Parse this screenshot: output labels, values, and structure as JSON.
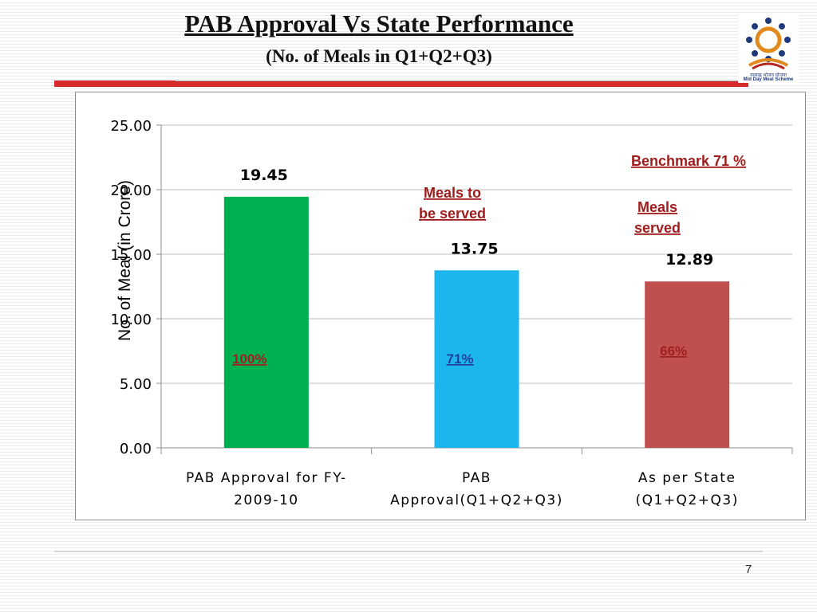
{
  "slide": {
    "title": "PAB Approval  Vs State Performance",
    "subtitle": "(No. of Meals in Q1+Q2+Q3)",
    "page_number": "7",
    "logo": {
      "icon": "mid-day-meal-scheme-logo",
      "caption_hindi": "मध्याह्न भोजन योजना",
      "caption": "Mid Day Meal Scheme"
    },
    "accent_color": "#d62b2b"
  },
  "chart_data": {
    "type": "bar",
    "categories": [
      [
        "PAB Approval for FY-",
        "2009-10"
      ],
      [
        "PAB",
        "Approval(Q1+Q2+Q3)"
      ],
      [
        "As per State",
        "(Q1+Q2+Q3)"
      ]
    ],
    "values": [
      19.45,
      13.75,
      12.89
    ],
    "value_labels": [
      "19.45",
      "13.75",
      "12.89"
    ],
    "bar_colors": [
      "#00b050",
      "#1cb5ee",
      "#c0504d"
    ],
    "percent_labels": [
      {
        "text": "100%",
        "color": "#a02020"
      },
      {
        "text": "71%",
        "color": "#1f3f9f"
      },
      {
        "text": "66%",
        "color": "#a02020"
      }
    ],
    "annotations": [
      {
        "text": "Benchmark  71 %",
        "color": "#a01c1c"
      },
      {
        "text": "Meals to be served",
        "color": "#a01c1c"
      },
      {
        "text": "Meals served",
        "color": "#a01c1c"
      }
    ],
    "ylabel": "No. of Meal  (in Crore)",
    "ylim": [
      0,
      25
    ],
    "yticks": [
      "0.00",
      "5.00",
      "10.00",
      "15.00",
      "20.00",
      "25.00"
    ],
    "grid": true
  }
}
